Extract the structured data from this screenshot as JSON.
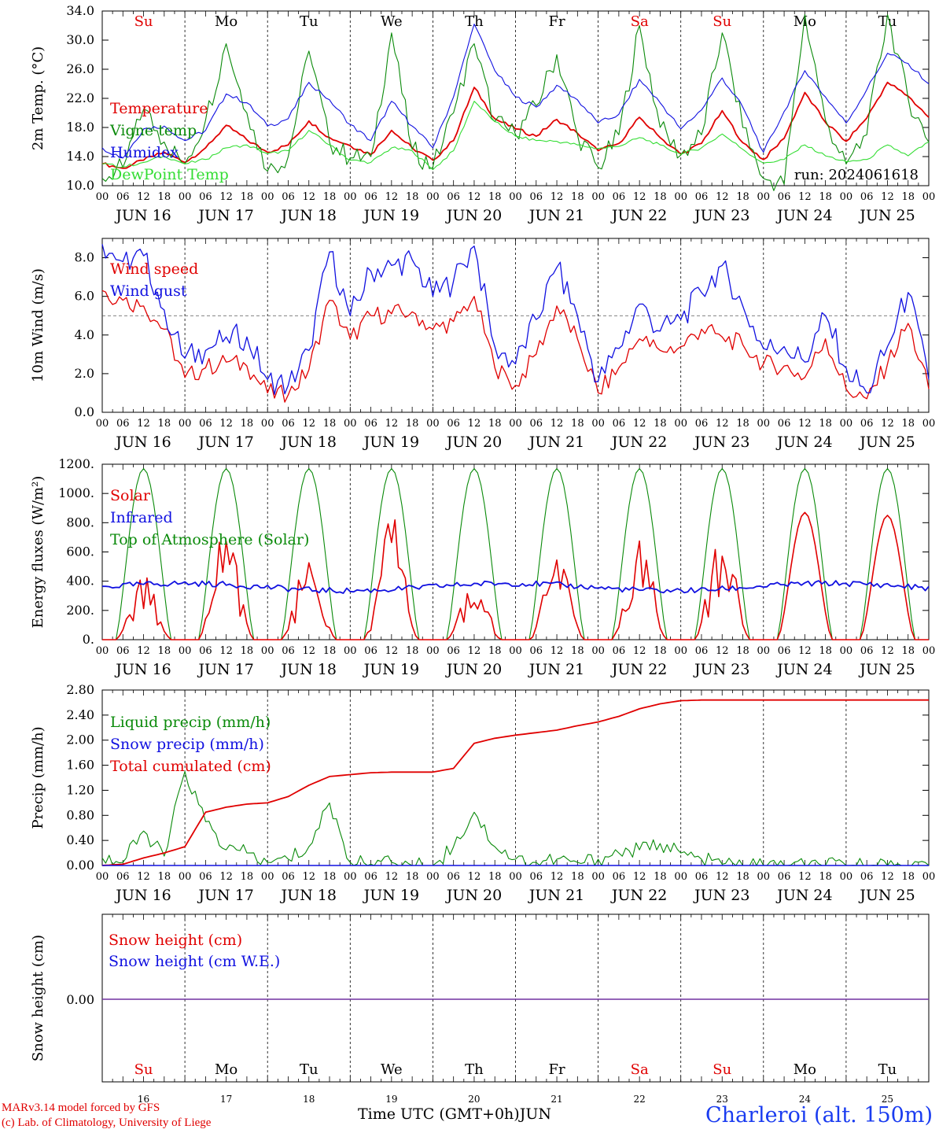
{
  "page": {
    "credit_line1": "MARv3.14 model forced by GFS",
    "credit_line2": "(c) Lab. of Climatology, University of Liege",
    "x_title": "Time UTC (GMT+0h)",
    "month": "JUN",
    "station": "Charleroi (alt. 150m)",
    "run_label": "run: 2024061618"
  },
  "colors": {
    "red": "#e00000",
    "green": "#0a8a0a",
    "light_green": "#33dd33",
    "blue": "#1010e0",
    "purple": "#7030a0"
  },
  "chart_data": [
    {
      "type": "line",
      "ylabel": "2m Temp. (°C)",
      "ylim": [
        10,
        34
      ],
      "yticks": [
        "10.0",
        "14.0",
        "18.0",
        "22.0",
        "26.0",
        "30.0",
        "34.0"
      ],
      "legend": [
        "Temperature",
        "Vigne temp",
        "Humidex",
        "DewPoint Temp"
      ],
      "day_names": [
        "Su",
        "Mo",
        "Tu",
        "We",
        "Th",
        "Fr",
        "Sa",
        "Su",
        "Mo",
        "Tu"
      ],
      "x_hours": [
        0,
        6,
        12,
        18,
        24,
        30,
        36,
        42,
        48,
        54,
        60,
        66,
        72,
        78,
        84,
        90,
        96,
        102,
        108,
        114,
        120,
        126,
        132,
        138,
        144,
        150,
        156,
        162,
        168,
        174,
        180,
        186,
        192,
        198,
        204,
        210,
        216,
        222,
        228,
        234,
        240
      ],
      "series": [
        {
          "name": "Temperature",
          "color": "red",
          "values": [
            13,
            12.4,
            13.5,
            14.6,
            13.2,
            15.2,
            18.3,
            16.3,
            14.6,
            15.6,
            18.9,
            16.6,
            15.5,
            14.3,
            17.6,
            15.2,
            13.5,
            16.2,
            23.5,
            19.2,
            17.8,
            16.8,
            19.1,
            17.2,
            14.8,
            15.8,
            19.4,
            16.6,
            14.3,
            15.8,
            20.3,
            15.9,
            13.6,
            16.5,
            22.8,
            18.7,
            16.1,
            19.3,
            24.2,
            22.3,
            19.4
          ]
        },
        {
          "name": "Vigne temp",
          "color": "green",
          "values": [
            11,
            12.5,
            20.5,
            16,
            13,
            19,
            29.5,
            20,
            12,
            14,
            28.5,
            16,
            13.8,
            14,
            31,
            15,
            12.5,
            20,
            29.5,
            18.8,
            17,
            21,
            28,
            17,
            12.5,
            17,
            32,
            18,
            14.2,
            17,
            31,
            18,
            11,
            10.2,
            33.5,
            19,
            13,
            17,
            33.5,
            22,
            16
          ]
        },
        {
          "name": "Humidex",
          "color": "blue",
          "values": [
            15.2,
            13.8,
            17.8,
            18.2,
            16.2,
            17.6,
            22.6,
            21.4,
            18.2,
            19.2,
            24.2,
            21.8,
            18.4,
            16.2,
            21.6,
            18.2,
            15.2,
            22.2,
            32.2,
            25.8,
            22.2,
            20.8,
            23.8,
            21.8,
            18.6,
            19.8,
            24.6,
            21.4,
            17.8,
            20.4,
            24.8,
            20.8,
            14.6,
            20.2,
            25.8,
            22.2,
            18.6,
            23.2,
            28.2,
            26.8,
            24
          ]
        },
        {
          "name": "DewPoint Temp",
          "color": "light_green",
          "values": [
            13,
            12.6,
            13.2,
            14.1,
            13.0,
            13.6,
            15.2,
            15.6,
            14.4,
            14.8,
            17.6,
            15.6,
            13.5,
            13.2,
            15.2,
            14.8,
            12.2,
            14.8,
            21.6,
            18.8,
            16.8,
            16.2,
            16.1,
            15.6,
            15.1,
            15.4,
            16.6,
            15.6,
            14.3,
            15.2,
            17.1,
            15.0,
            13.1,
            13.6,
            15.6,
            14.1,
            13.3,
            13.6,
            15.6,
            14.1,
            16.0
          ]
        }
      ]
    },
    {
      "type": "line",
      "ylabel": "10m Wind (m/s)",
      "ylim": [
        0,
        9
      ],
      "yticks": [
        "0.0",
        "2.0",
        "4.0",
        "6.0",
        "8.0"
      ],
      "reference_line": 5,
      "legend": [
        "Wind speed",
        "Wind gust"
      ],
      "x_hours": [
        0,
        6,
        12,
        18,
        24,
        30,
        36,
        42,
        48,
        54,
        60,
        66,
        72,
        78,
        84,
        90,
        96,
        102,
        108,
        114,
        120,
        126,
        132,
        138,
        144,
        150,
        156,
        162,
        168,
        174,
        180,
        186,
        192,
        198,
        204,
        210,
        216,
        222,
        228,
        234,
        240
      ],
      "series": [
        {
          "name": "Wind speed",
          "color": "red",
          "values": [
            6.3,
            5.8,
            5.5,
            4.3,
            1.8,
            2.3,
            2.6,
            2.4,
            1.0,
            0.9,
            2.2,
            5.8,
            3.8,
            5.0,
            5.1,
            5.2,
            4.3,
            4.7,
            6.0,
            2.3,
            1.4,
            3.0,
            5.5,
            3.8,
            1.0,
            2.3,
            3.8,
            3.2,
            3.4,
            4.3,
            3.9,
            3.5,
            2.5,
            2.4,
            1.8,
            3.8,
            1.2,
            0.7,
            2.5,
            4.6,
            1.2
          ]
        },
        {
          "name": "Wind gust",
          "color": "blue",
          "values": [
            8.7,
            7.8,
            8.1,
            5.3,
            2.8,
            3.2,
            3.9,
            3.9,
            1.7,
            1.4,
            3.2,
            8.3,
            5.0,
            7.3,
            7.6,
            7.9,
            6.0,
            6.8,
            8.6,
            3.4,
            2.5,
            4.8,
            7.5,
            5.0,
            1.6,
            3.3,
            5.6,
            4.2,
            4.8,
            6.2,
            7.6,
            5.5,
            3.3,
            3.4,
            2.6,
            5.0,
            2.3,
            1.0,
            3.4,
            6.2,
            1.7
          ]
        }
      ]
    },
    {
      "type": "line",
      "ylabel": "Energy fluxes (W/m²)",
      "ylim": [
        0,
        1200
      ],
      "yticks": [
        "0.",
        "200.",
        "400.",
        "600.",
        "800.",
        "1000.",
        "1200."
      ],
      "legend": [
        "Solar",
        "Infrared",
        "Top of Atmosphere (Solar)"
      ],
      "toa_peak": 1170,
      "solar_peaks": [
        450,
        800,
        560,
        850,
        380,
        560,
        700,
        740,
        870,
        850
      ],
      "infrared_value": 360,
      "series": [
        {
          "name": "Solar",
          "color": "red"
        },
        {
          "name": "Infrared",
          "color": "blue"
        },
        {
          "name": "Top of Atmosphere (Solar)",
          "color": "green"
        }
      ]
    },
    {
      "type": "line",
      "ylabel": "Precip",
      "ylabel2": "(mm/h)",
      "ylim": [
        0,
        2.8
      ],
      "yticks": [
        "0.00",
        "0.40",
        "0.80",
        "1.20",
        "1.60",
        "2.00",
        "2.40",
        "2.80"
      ],
      "legend": [
        "Liquid precip (mm/h)",
        "Snow precip (mm/h)",
        "Total cumulated (cm)"
      ],
      "x_hours": [
        0,
        6,
        12,
        18,
        24,
        30,
        36,
        42,
        48,
        54,
        60,
        66,
        72,
        78,
        84,
        90,
        96,
        102,
        108,
        114,
        120,
        126,
        132,
        138,
        144,
        150,
        156,
        162,
        168,
        174,
        180,
        186,
        192,
        198,
        204,
        210,
        216,
        222,
        228,
        234,
        240
      ],
      "series": [
        {
          "name": "Total cumulated (cm)",
          "color": "red",
          "values": [
            0,
            0.02,
            0.12,
            0.2,
            0.3,
            0.85,
            0.93,
            0.98,
            1.0,
            1.1,
            1.28,
            1.42,
            1.45,
            1.48,
            1.49,
            1.49,
            1.49,
            1.55,
            1.95,
            2.03,
            2.08,
            2.12,
            2.16,
            2.23,
            2.29,
            2.38,
            2.5,
            2.58,
            2.63,
            2.64,
            2.64,
            2.64,
            2.64,
            2.64,
            2.64,
            2.64,
            2.64,
            2.64,
            2.64,
            2.64,
            2.64
          ]
        },
        {
          "name": "Liquid precip (mm/h)",
          "color": "green",
          "values": [
            0.12,
            0.05,
            0.55,
            0.15,
            1.5,
            0.7,
            0.25,
            0.2,
            0.05,
            0.1,
            0.3,
            1.0,
            0.05,
            0.02,
            0.05,
            0.0,
            0.0,
            0.3,
            0.85,
            0.3,
            0.1,
            0.05,
            0.1,
            0.05,
            0.1,
            0.2,
            0.25,
            0.35,
            0.2,
            0.1,
            0.02,
            0,
            0,
            0,
            0,
            0,
            0,
            0,
            0,
            0,
            0
          ]
        },
        {
          "name": "Snow precip (mm/h)",
          "color": "blue",
          "values": []
        }
      ]
    },
    {
      "type": "line",
      "ylabel": "Snow height (cm)",
      "ytick": "0.00",
      "legend": [
        "Snow height (cm)",
        "Snow height (cm W.E.)"
      ],
      "values": [
        0
      ],
      "day_names": [
        "Su",
        "Mo",
        "Tu",
        "We",
        "Th",
        "Fr",
        "Sa",
        "Su",
        "Mo",
        "Tu"
      ],
      "day_numbers": [
        "16",
        "17",
        "18",
        "19",
        "20",
        "21",
        "22",
        "23",
        "24",
        "25"
      ]
    }
  ],
  "x_axis": {
    "hour_labels": [
      "00",
      "06",
      "12",
      "18"
    ],
    "date_labels": [
      "JUN 16",
      "JUN 17",
      "JUN 18",
      "JUN 19",
      "JUN 20",
      "JUN 21",
      "JUN 22",
      "JUN 23",
      "JUN 24",
      "JUN 25"
    ],
    "weekend_days": [
      0,
      6,
      7
    ]
  }
}
